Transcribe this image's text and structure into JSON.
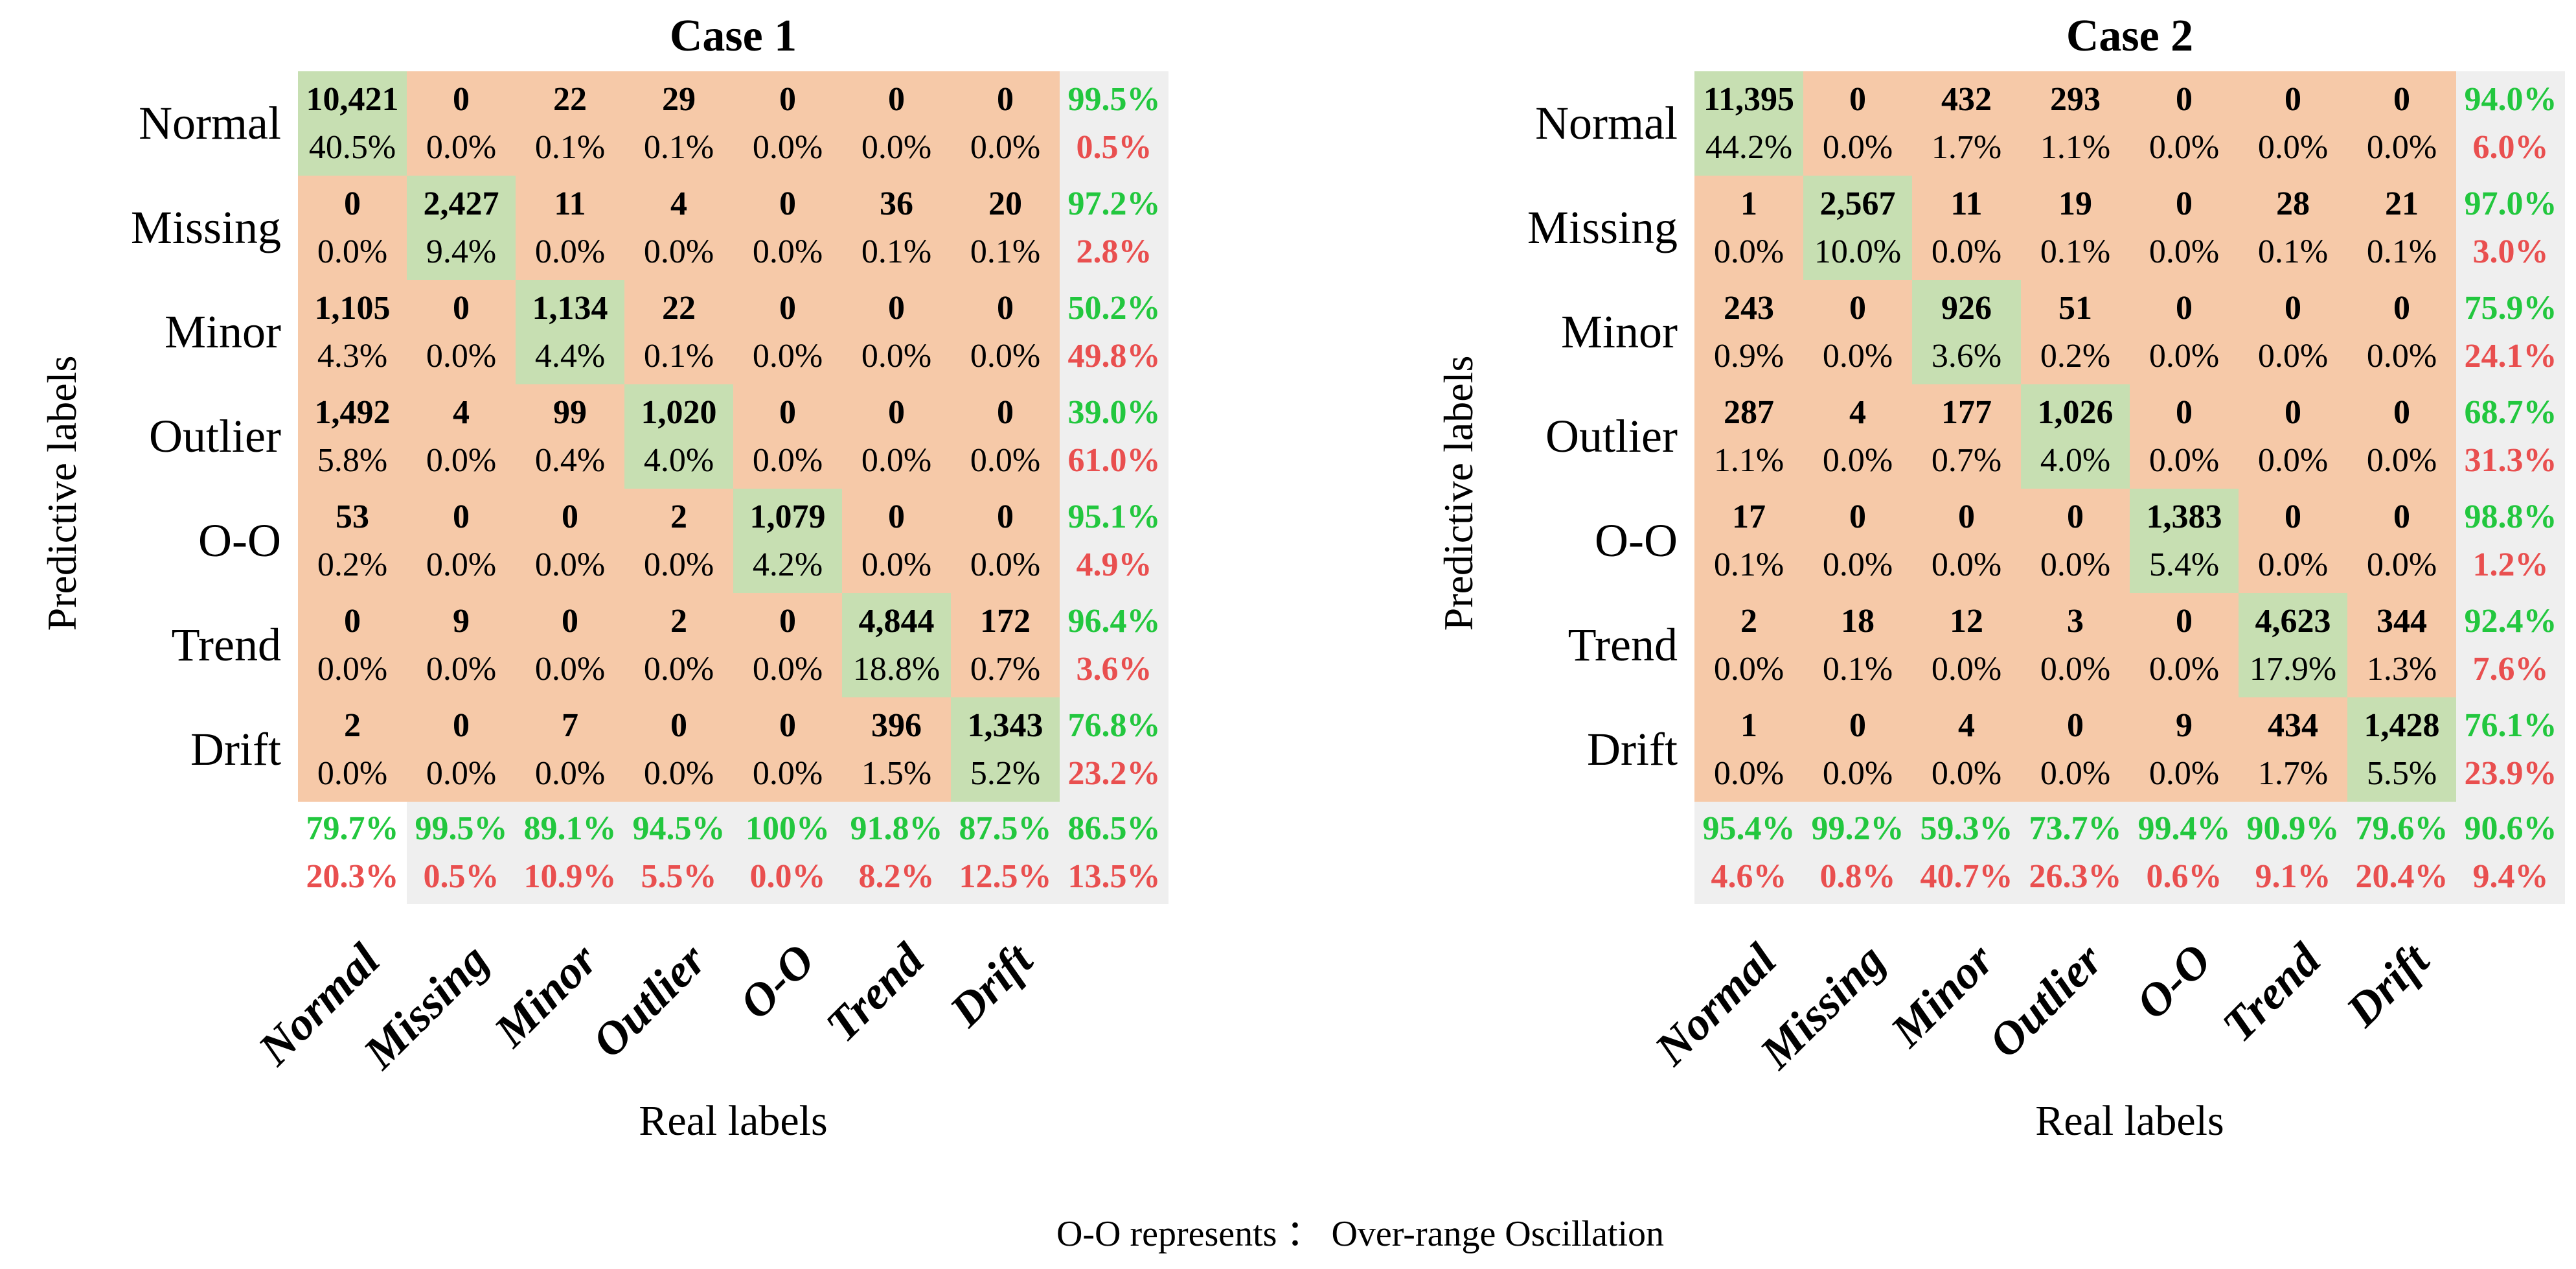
{
  "page": {
    "background": "#ffffff"
  },
  "colors": {
    "offdiag_bg": "#F6C9A8",
    "diag_bg": "#C7DFB2",
    "summary_bg": "#EFEFEF",
    "green_text": "#22C73E",
    "red_text": "#E94F4F"
  },
  "footer": {
    "text": "O-O represents ：  Over-range Oscillation"
  },
  "chart_data": [
    {
      "type": "heatmap",
      "title": "Case 1",
      "xlabel": "Real labels",
      "ylabel": "Predictive labels",
      "classes": [
        "Normal",
        "Missing",
        "Minor",
        "Outlier",
        "O-O",
        "Trend",
        "Drift"
      ],
      "counts": [
        [
          "10,421",
          "0",
          "22",
          "29",
          "0",
          "0",
          "0"
        ],
        [
          "0",
          "2,427",
          "11",
          "4",
          "0",
          "36",
          "20"
        ],
        [
          "1,105",
          "0",
          "1,134",
          "22",
          "0",
          "0",
          "0"
        ],
        [
          "1,492",
          "4",
          "99",
          "1,020",
          "0",
          "0",
          "0"
        ],
        [
          "53",
          "0",
          "0",
          "2",
          "1,079",
          "0",
          "0"
        ],
        [
          "0",
          "9",
          "0",
          "2",
          "0",
          "4,844",
          "172"
        ],
        [
          "2",
          "0",
          "7",
          "0",
          "0",
          "396",
          "1,343"
        ]
      ],
      "cell_pcts": [
        [
          "40.5%",
          "0.0%",
          "0.1%",
          "0.1%",
          "0.0%",
          "0.0%",
          "0.0%"
        ],
        [
          "0.0%",
          "9.4%",
          "0.0%",
          "0.0%",
          "0.0%",
          "0.1%",
          "0.1%"
        ],
        [
          "4.3%",
          "0.0%",
          "4.4%",
          "0.1%",
          "0.0%",
          "0.0%",
          "0.0%"
        ],
        [
          "5.8%",
          "0.0%",
          "0.4%",
          "4.0%",
          "0.0%",
          "0.0%",
          "0.0%"
        ],
        [
          "0.2%",
          "0.0%",
          "0.0%",
          "0.0%",
          "4.2%",
          "0.0%",
          "0.0%"
        ],
        [
          "0.0%",
          "0.0%",
          "0.0%",
          "0.0%",
          "0.0%",
          "18.8%",
          "0.7%"
        ],
        [
          "0.0%",
          "0.0%",
          "0.0%",
          "0.0%",
          "0.0%",
          "1.5%",
          "5.2%"
        ]
      ],
      "row_summary": {
        "green": [
          "99.5%",
          "97.2%",
          "50.2%",
          "39.0%",
          "95.1%",
          "96.4%",
          "76.8%"
        ],
        "red": [
          "0.5%",
          "2.8%",
          "49.8%",
          "61.0%",
          "4.9%",
          "3.6%",
          "23.2%"
        ]
      },
      "col_summary": {
        "green": [
          "79.7%",
          "99.5%",
          "89.1%",
          "94.5%",
          "100%",
          "91.8%",
          "87.5%"
        ],
        "red": [
          "20.3%",
          "0.5%",
          "10.9%",
          "5.5%",
          "0.0%",
          "8.2%",
          "12.5%"
        ]
      },
      "overall": {
        "green": "86.5%",
        "red": "13.5%"
      },
      "bottom_left_summary_white": true
    },
    {
      "type": "heatmap",
      "title": "Case 2",
      "xlabel": "Real labels",
      "ylabel": "Predictive labels",
      "classes": [
        "Normal",
        "Missing",
        "Minor",
        "Outlier",
        "O-O",
        "Trend",
        "Drift"
      ],
      "counts": [
        [
          "11,395",
          "0",
          "432",
          "293",
          "0",
          "0",
          "0"
        ],
        [
          "1",
          "2,567",
          "11",
          "19",
          "0",
          "28",
          "21"
        ],
        [
          "243",
          "0",
          "926",
          "51",
          "0",
          "0",
          "0"
        ],
        [
          "287",
          "4",
          "177",
          "1,026",
          "0",
          "0",
          "0"
        ],
        [
          "17",
          "0",
          "0",
          "0",
          "1,383",
          "0",
          "0"
        ],
        [
          "2",
          "18",
          "12",
          "3",
          "0",
          "4,623",
          "344"
        ],
        [
          "1",
          "0",
          "4",
          "0",
          "9",
          "434",
          "1,428"
        ]
      ],
      "cell_pcts": [
        [
          "44.2%",
          "0.0%",
          "1.7%",
          "1.1%",
          "0.0%",
          "0.0%",
          "0.0%"
        ],
        [
          "0.0%",
          "10.0%",
          "0.0%",
          "0.1%",
          "0.0%",
          "0.1%",
          "0.1%"
        ],
        [
          "0.9%",
          "0.0%",
          "3.6%",
          "0.2%",
          "0.0%",
          "0.0%",
          "0.0%"
        ],
        [
          "1.1%",
          "0.0%",
          "0.7%",
          "4.0%",
          "0.0%",
          "0.0%",
          "0.0%"
        ],
        [
          "0.1%",
          "0.0%",
          "0.0%",
          "0.0%",
          "5.4%",
          "0.0%",
          "0.0%"
        ],
        [
          "0.0%",
          "0.1%",
          "0.0%",
          "0.0%",
          "0.0%",
          "17.9%",
          "1.3%"
        ],
        [
          "0.0%",
          "0.0%",
          "0.0%",
          "0.0%",
          "0.0%",
          "1.7%",
          "5.5%"
        ]
      ],
      "row_summary": {
        "green": [
          "94.0%",
          "97.0%",
          "75.9%",
          "68.7%",
          "98.8%",
          "92.4%",
          "76.1%"
        ],
        "red": [
          "6.0%",
          "3.0%",
          "24.1%",
          "31.3%",
          "1.2%",
          "7.6%",
          "23.9%"
        ]
      },
      "col_summary": {
        "green": [
          "95.4%",
          "99.2%",
          "59.3%",
          "73.7%",
          "99.4%",
          "90.9%",
          "79.6%"
        ],
        "red": [
          "4.6%",
          "0.8%",
          "40.7%",
          "26.3%",
          "0.6%",
          "9.1%",
          "20.4%"
        ]
      },
      "overall": {
        "green": "90.6%",
        "red": "9.4%"
      },
      "bottom_left_summary_white": false
    }
  ]
}
